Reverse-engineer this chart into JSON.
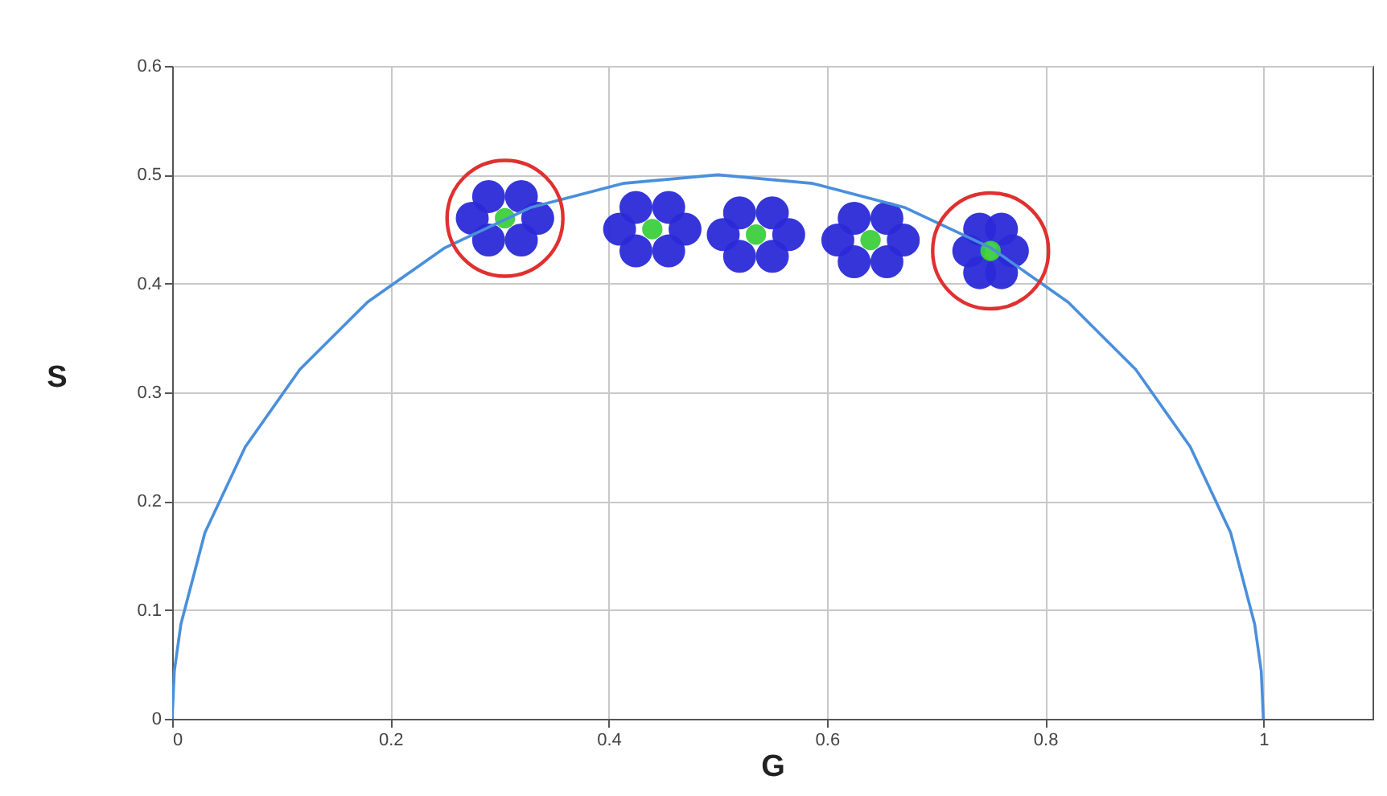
{
  "chart_data": {
    "type": "scatter",
    "xlabel": "G",
    "ylabel": "S",
    "xlim": [
      0,
      1.1
    ],
    "ylim": [
      0,
      0.6
    ],
    "xticks": [
      0,
      0.2,
      0.4,
      0.6,
      0.8,
      1
    ],
    "yticks": [
      0,
      0.1,
      0.2,
      0.3,
      0.4,
      0.5,
      0.6
    ],
    "grid": true,
    "marker": "circle",
    "series": [
      {
        "type": "line",
        "marker": "none",
        "color": "#4a8fdc",
        "x": [
          0,
          0.002,
          0.008,
          0.03,
          0.067,
          0.117,
          0.179,
          0.25,
          0.329,
          0.413,
          0.5,
          0.587,
          0.671,
          0.75,
          0.821,
          0.883,
          0.933,
          0.97,
          0.992,
          0.998,
          1
        ],
        "values": [
          0,
          0.044,
          0.087,
          0.171,
          0.25,
          0.321,
          0.383,
          0.433,
          0.47,
          0.492,
          0.5,
          0.492,
          0.47,
          0.433,
          0.383,
          0.321,
          0.25,
          0.171,
          0.087,
          0.044,
          0
        ]
      },
      {
        "color": "#2a2ad8",
        "x": [
          0.275,
          0.335,
          0.29,
          0.32,
          0.29,
          0.32,
          0.41,
          0.47,
          0.425,
          0.455,
          0.425,
          0.455,
          0.505,
          0.565,
          0.52,
          0.55,
          0.52,
          0.55,
          0.61,
          0.67,
          0.625,
          0.655,
          0.625,
          0.655,
          0.73,
          0.77,
          0.74,
          0.76,
          0.74,
          0.76
        ],
        "values": [
          0.46,
          0.46,
          0.48,
          0.48,
          0.44,
          0.44,
          0.45,
          0.45,
          0.47,
          0.47,
          0.43,
          0.43,
          0.445,
          0.445,
          0.465,
          0.465,
          0.425,
          0.425,
          0.44,
          0.44,
          0.46,
          0.46,
          0.42,
          0.42,
          0.43,
          0.43,
          0.45,
          0.45,
          0.41,
          0.41
        ]
      },
      {
        "color": "#3ccf3c",
        "x": [
          0.305,
          0.44,
          0.535,
          0.64,
          0.75
        ],
        "values": [
          0.46,
          0.45,
          0.445,
          0.44,
          0.43
        ]
      }
    ]
  }
}
